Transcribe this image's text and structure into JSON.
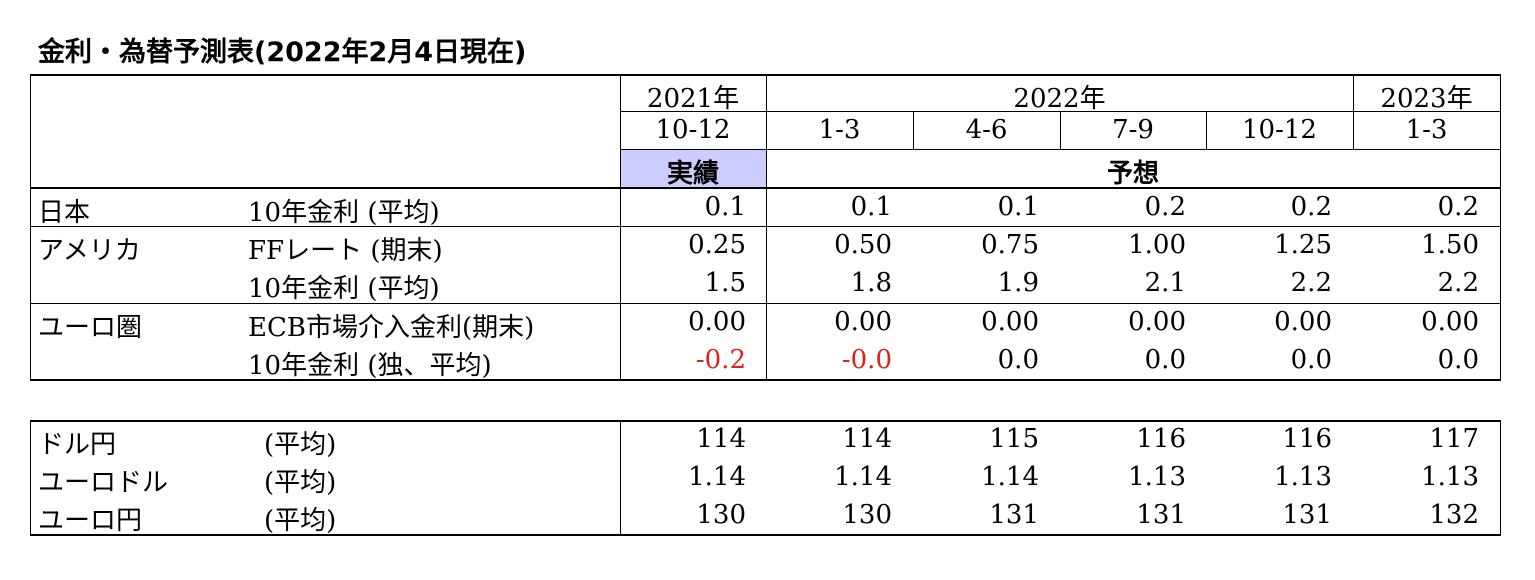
{
  "title": "金利・為替予測表(2022年2月4日現在)",
  "header": {
    "years": [
      "2021年",
      "2022年",
      "2023年"
    ],
    "quarters": [
      "10-12",
      "1-3",
      "4-6",
      "7-9",
      "10-12",
      "1-3"
    ],
    "actual_label": "実績",
    "forecast_label": "予想"
  },
  "rates": {
    "japan": {
      "region": "日本",
      "rows": [
        {
          "item": "10年金利 (平均)",
          "values": [
            "0.1",
            "0.1",
            "0.1",
            "0.2",
            "0.2",
            "0.2"
          ]
        }
      ]
    },
    "usa": {
      "region": "アメリカ",
      "rows": [
        {
          "item": "FFレート (期末)",
          "values": [
            "0.25",
            "0.50",
            "0.75",
            "1.00",
            "1.25",
            "1.50"
          ]
        },
        {
          "item": "10年金利 (平均)",
          "values": [
            "1.5",
            "1.8",
            "1.9",
            "2.1",
            "2.2",
            "2.2"
          ]
        }
      ]
    },
    "euro": {
      "region": "ユーロ圏",
      "rows": [
        {
          "item": "ECB市場介入金利(期末)",
          "values": [
            "0.00",
            "0.00",
            "0.00",
            "0.00",
            "0.00",
            "0.00"
          ]
        },
        {
          "item": "10年金利 (独、平均)",
          "values": [
            "-0.2",
            "-0.0",
            "0.0",
            "0.0",
            "0.0",
            "0.0"
          ]
        }
      ]
    }
  },
  "fx": [
    {
      "pair": "ドル円",
      "item": "(平均)",
      "values": [
        "114",
        "114",
        "115",
        "116",
        "116",
        "117"
      ]
    },
    {
      "pair": "ユーロドル",
      "item": "(平均)",
      "values": [
        "1.14",
        "1.14",
        "1.14",
        "1.13",
        "1.13",
        "1.13"
      ]
    },
    {
      "pair": "ユーロ円",
      "item": "(平均)",
      "values": [
        "130",
        "130",
        "131",
        "131",
        "131",
        "132"
      ]
    }
  ],
  "colors": {
    "actual_bg": "#ccccff",
    "negative": "#e0201c"
  }
}
